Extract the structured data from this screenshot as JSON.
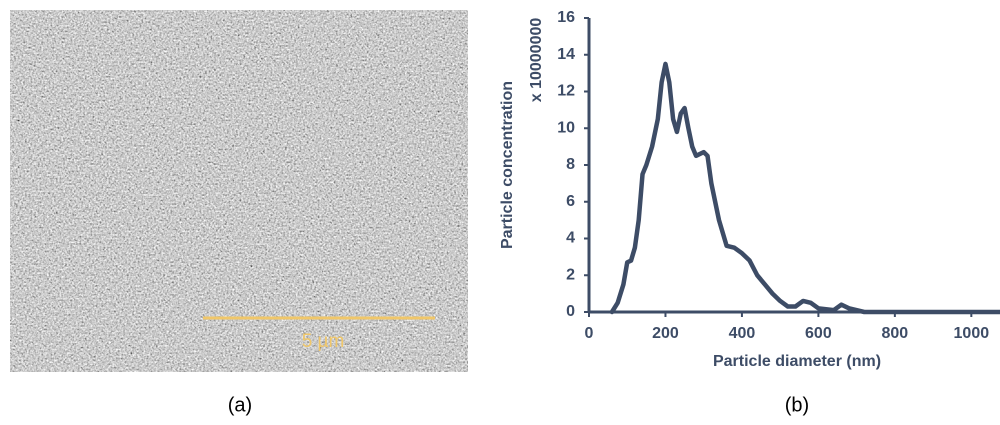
{
  "image": {
    "scale_bar_label": "5 µm",
    "caption": "(a)"
  },
  "chart_data": {
    "type": "line",
    "caption": "(b)",
    "y_label": "Particle concentration",
    "y_multiplier": "x 10000000",
    "x_label": "Particle diameter (nm)",
    "color": "#3d4c66",
    "x": [
      60,
      75,
      90,
      100,
      110,
      120,
      130,
      140,
      150,
      165,
      180,
      190,
      200,
      210,
      220,
      230,
      240,
      250,
      260,
      270,
      280,
      300,
      310,
      320,
      340,
      360,
      380,
      400,
      420,
      440,
      460,
      480,
      500,
      520,
      540,
      560,
      580,
      600,
      640,
      660,
      680,
      720,
      1075
    ],
    "values": [
      0,
      0.5,
      1.5,
      2.7,
      2.8,
      3.5,
      5,
      7.5,
      8,
      9,
      10.5,
      12.5,
      13.5,
      12.5,
      10.5,
      9.8,
      10.8,
      11.1,
      10,
      9,
      8.5,
      8.7,
      8.5,
      7,
      5,
      3.6,
      3.5,
      3.2,
      2.8,
      2,
      1.5,
      1,
      0.6,
      0.3,
      0.3,
      0.6,
      0.5,
      0.2,
      0.1,
      0.4,
      0.2,
      0,
      0
    ],
    "xlim": [
      0,
      1075
    ],
    "xticks": [
      0,
      200,
      400,
      600,
      800,
      1000
    ],
    "ylim": [
      0,
      16
    ],
    "yticks": [
      0,
      2,
      4,
      6,
      8,
      10,
      12,
      14,
      16
    ]
  }
}
